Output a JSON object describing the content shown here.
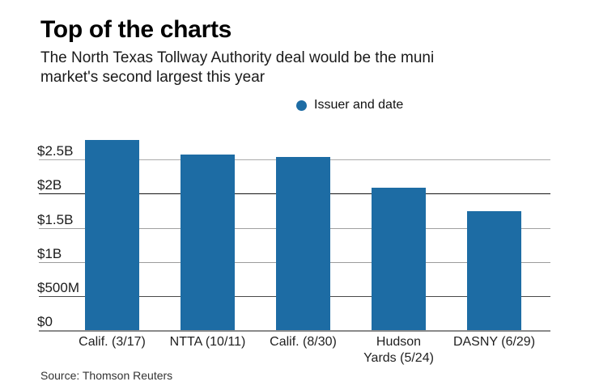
{
  "header": {
    "title": "Top of the charts",
    "subtitle_lines": [
      "The North Texas Tollway Authority deal would be the muni",
      "market's second largest this year"
    ]
  },
  "legend": {
    "label": "Issuer and date",
    "marker_color": "#1d6ca4"
  },
  "chart_data": {
    "type": "bar",
    "title": "Top of the charts",
    "subtitle": "The North Texas Tollway Authority deal would be the muni market's second largest this year",
    "categories": [
      "Calif. (3/17)",
      "NTTA (10/11)",
      "Calif. (8/30)",
      "Hudson Yards (5/24)",
      "DASNY (6/29)"
    ],
    "tick_labels": [
      "Calif. (3/17)",
      "NTTA (10/11)",
      "Calif. (8/30)",
      "Hudson\nYards (5/24)",
      "DASNY (6/29)"
    ],
    "values": [
      2.79,
      2.57,
      2.54,
      2.09,
      1.74
    ],
    "unit": "billions of dollars",
    "series_name": "Issuer and date",
    "bar_color": "#1d6ca4",
    "xlabel": "",
    "ylabel": "",
    "ylim": [
      0,
      2.95
    ],
    "grid": true,
    "legend_position": "top-center",
    "y_ticks": [
      {
        "value": 0,
        "label": "$0",
        "color": "#8a8a8a"
      },
      {
        "value": 0.5,
        "label": "$500M",
        "color": "#4a4a4a"
      },
      {
        "value": 1,
        "label": "$1B",
        "color": "#9c9c9c"
      },
      {
        "value": 1.5,
        "label": "$1.5B",
        "color": "#a0a0a0"
      },
      {
        "value": 2,
        "label": "$2B",
        "color": "#161616"
      },
      {
        "value": 2.5,
        "label": "$2.5B",
        "color": "#ababab"
      }
    ]
  },
  "source": "Source: Thomson Reuters"
}
